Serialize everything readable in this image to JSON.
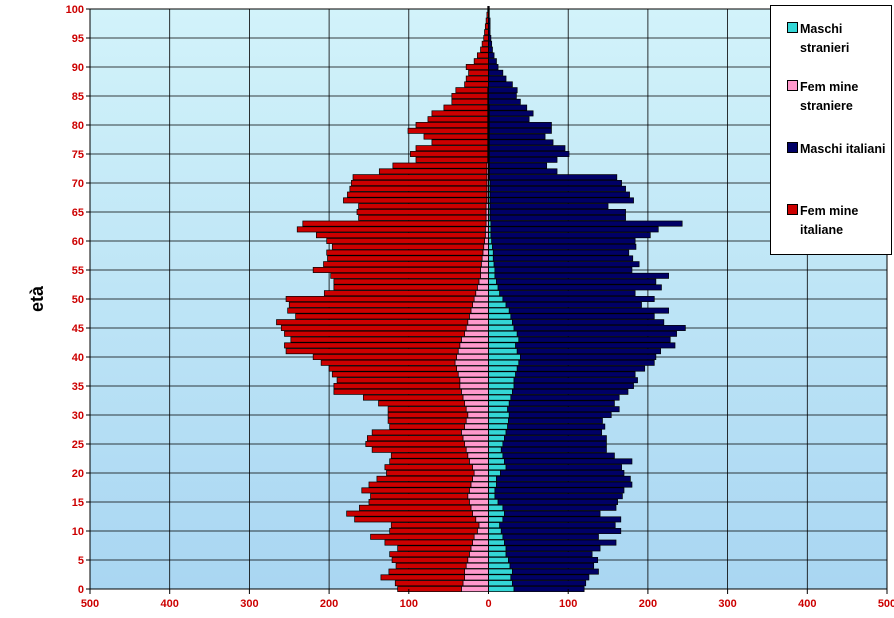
{
  "chart_data": {
    "type": "bar",
    "orientation": "horizontal",
    "stacked": true,
    "ylabel": "età",
    "x_ticks": [
      "500",
      "400",
      "300",
      "200",
      "100",
      "0",
      "100",
      "200",
      "300",
      "400",
      "500"
    ],
    "y_ticks": [
      "0",
      "5",
      "10",
      "15",
      "20",
      "25",
      "30",
      "35",
      "40",
      "45",
      "50",
      "55",
      "60",
      "65",
      "70",
      "75",
      "80",
      "85",
      "90",
      "95",
      "100"
    ],
    "xlim": [
      -500,
      500
    ],
    "ylim": [
      0,
      100
    ],
    "grid": true,
    "legend_position": "top-right",
    "ages": [
      0,
      1,
      2,
      3,
      4,
      5,
      6,
      7,
      8,
      9,
      10,
      11,
      12,
      13,
      14,
      15,
      16,
      17,
      18,
      19,
      20,
      21,
      22,
      23,
      24,
      25,
      26,
      27,
      28,
      29,
      30,
      31,
      32,
      33,
      34,
      35,
      36,
      37,
      38,
      39,
      40,
      41,
      42,
      43,
      44,
      45,
      46,
      47,
      48,
      49,
      50,
      51,
      52,
      53,
      54,
      55,
      56,
      57,
      58,
      59,
      60,
      61,
      62,
      63,
      64,
      65,
      66,
      67,
      68,
      69,
      70,
      71,
      72,
      73,
      74,
      75,
      76,
      77,
      78,
      79,
      80,
      81,
      82,
      83,
      84,
      85,
      86,
      87,
      88,
      89,
      90,
      91,
      92,
      93,
      94,
      95,
      96,
      97,
      98,
      99,
      100
    ],
    "series": [
      {
        "name": "Maschi stranieri",
        "color": "#33d6d6",
        "side": "right",
        "values": [
          32,
          30,
          28,
          30,
          27,
          25,
          22,
          22,
          20,
          18,
          16,
          14,
          18,
          20,
          18,
          12,
          8,
          8,
          10,
          10,
          15,
          22,
          20,
          18,
          16,
          18,
          20,
          22,
          24,
          25,
          26,
          24,
          26,
          28,
          30,
          32,
          32,
          34,
          36,
          38,
          40,
          36,
          34,
          38,
          36,
          32,
          30,
          28,
          26,
          22,
          18,
          14,
          12,
          10,
          8,
          8,
          7,
          6,
          6,
          5,
          4,
          3,
          3,
          3,
          2,
          2,
          2,
          2,
          2,
          2,
          2,
          1,
          1,
          1,
          1,
          1,
          1,
          1,
          1,
          1,
          1,
          1,
          1,
          1,
          0,
          0,
          0,
          0,
          0,
          0,
          0,
          0,
          0,
          0,
          0,
          0,
          0,
          0,
          0,
          0,
          0
        ]
      },
      {
        "name": "Femmine straniere",
        "color": "#ff99cc",
        "side": "left",
        "values": [
          34,
          32,
          30,
          30,
          28,
          26,
          24,
          22,
          20,
          18,
          14,
          12,
          16,
          20,
          22,
          24,
          26,
          24,
          22,
          20,
          18,
          20,
          24,
          26,
          28,
          30,
          32,
          34,
          30,
          28,
          26,
          28,
          30,
          32,
          34,
          36,
          36,
          38,
          40,
          42,
          40,
          38,
          36,
          34,
          30,
          28,
          26,
          24,
          22,
          20,
          18,
          16,
          14,
          12,
          10,
          10,
          9,
          8,
          7,
          6,
          5,
          4,
          4,
          3,
          3,
          3,
          3,
          2,
          2,
          2,
          2,
          2,
          2,
          2,
          1,
          1,
          1,
          1,
          1,
          1,
          1,
          1,
          1,
          1,
          1,
          1,
          1,
          0,
          0,
          0,
          0,
          0,
          0,
          0,
          0,
          0,
          0,
          0,
          0,
          0,
          0
        ]
      },
      {
        "name": "Maschi italiani",
        "color": "#000066",
        "side": "right",
        "values": [
          88,
          92,
          98,
          108,
          105,
          112,
          108,
          118,
          140,
          120,
          150,
          145,
          148,
          120,
          142,
          150,
          160,
          162,
          170,
          168,
          155,
          145,
          160,
          140,
          132,
          130,
          128,
          120,
          122,
          118,
          128,
          140,
          132,
          136,
          145,
          150,
          155,
          150,
          160,
          170,
          170,
          180,
          200,
          190,
          200,
          215,
          190,
          180,
          200,
          170,
          190,
          170,
          205,
          200,
          218,
          172,
          182,
          175,
          170,
          180,
          180,
          200,
          210,
          240,
          170,
          170,
          148,
          180,
          175,
          170,
          165,
          160,
          85,
          72,
          85,
          100,
          95,
          80,
          70,
          78,
          78,
          50,
          55,
          47,
          40,
          35,
          36,
          30,
          22,
          18,
          12,
          10,
          7,
          5,
          4,
          3,
          2,
          2,
          2,
          1,
          1
        ]
      },
      {
        "name": "Femmine italiane",
        "color": "#cc0000",
        "side": "left",
        "values": [
          80,
          85,
          105,
          95,
          88,
          95,
          100,
          92,
          110,
          130,
          110,
          110,
          152,
          158,
          140,
          126,
          122,
          135,
          128,
          120,
          110,
          110,
          100,
          96,
          118,
          124,
          120,
          112,
          94,
          98,
          100,
          98,
          108,
          125,
          160,
          158,
          154,
          158,
          160,
          168,
          180,
          216,
          220,
          214,
          226,
          232,
          240,
          218,
          230,
          230,
          236,
          190,
          180,
          182,
          188,
          210,
          198,
          194,
          196,
          190,
          198,
          212,
          236,
          230,
          160,
          162,
          160,
          180,
          175,
          172,
          170,
          168,
          135,
          118,
          90,
          97,
          90,
          70,
          80,
          100,
          90,
          75,
          70,
          55,
          45,
          45,
          40,
          30,
          28,
          25,
          28,
          18,
          14,
          10,
          8,
          6,
          5,
          4,
          3,
          2,
          1
        ]
      }
    ]
  },
  "legend": [
    {
      "label": "Maschi stranieri",
      "color": "#33d6d6"
    },
    {
      "label": "Fem mine straniere",
      "color": "#ff99cc"
    },
    {
      "label": "Maschi italiani",
      "color": "#000066"
    },
    {
      "label": "Fem mine italiane",
      "color": "#cc0000"
    }
  ]
}
